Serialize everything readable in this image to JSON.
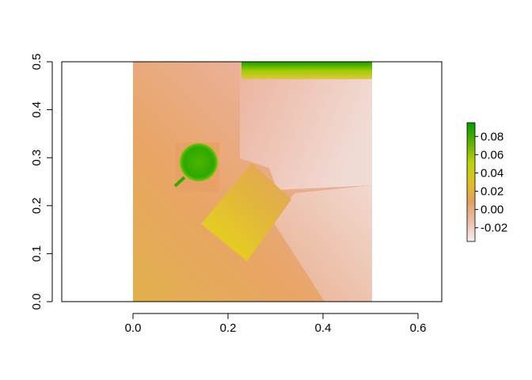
{
  "chart_data": {
    "type": "heatmap",
    "title": "",
    "xlabel": "",
    "ylabel": "",
    "xlim": [
      -0.15,
      0.65
    ],
    "ylim": [
      0.0,
      0.5
    ],
    "xticks": [
      0.0,
      0.2,
      0.4,
      0.6
    ],
    "xtick_labels": [
      "0.0",
      "0.2",
      "0.4",
      "0.6"
    ],
    "yticks": [
      0.0,
      0.1,
      0.2,
      0.3,
      0.4,
      0.5
    ],
    "ytick_labels": [
      "0.0",
      "0.1",
      "0.2",
      "0.3",
      "0.4",
      "0.5"
    ],
    "raster_extent": {
      "x": [
        0.0,
        0.5
      ],
      "y": [
        0.0,
        0.5
      ]
    },
    "value_range": [
      -0.035,
      0.095
    ],
    "colorbar": {
      "ticks": [
        -0.02,
        0.0,
        0.02,
        0.04,
        0.06,
        0.08
      ],
      "tick_labels": [
        "-0.02",
        "0.00",
        "0.02",
        "0.04",
        "0.06",
        "0.08"
      ],
      "colors": [
        "#f2f2f2",
        "#eebeab",
        "#e6a05e",
        "#e0c020",
        "#b9d20a",
        "#5cb000",
        "#00a000"
      ]
    },
    "regions": [
      {
        "label": "background",
        "value": -0.005
      },
      {
        "label": "upper-right surface",
        "value": -0.012
      },
      {
        "label": "top edge strip",
        "value": 0.08
      },
      {
        "label": "round object",
        "value": 0.07
      },
      {
        "label": "bag",
        "value": 0.025
      }
    ],
    "legend": "colorbar right",
    "grid": false
  }
}
